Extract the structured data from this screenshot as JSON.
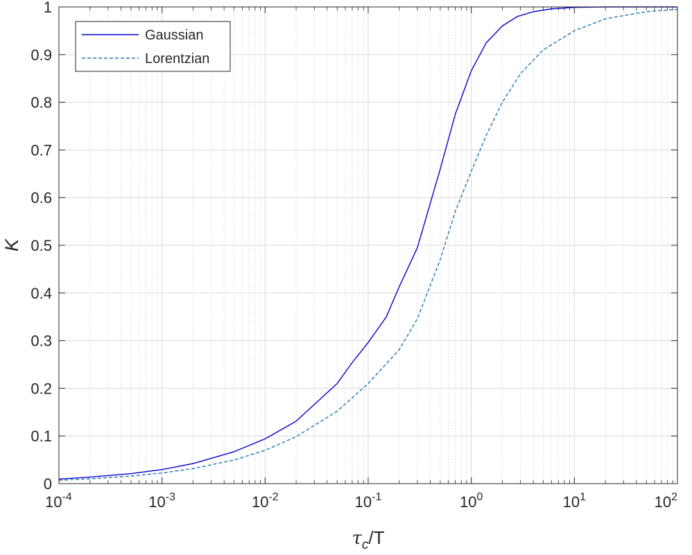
{
  "chart_data": {
    "type": "line",
    "x_scale": "log",
    "xlim": [
      0.0001,
      100
    ],
    "ylim": [
      0,
      1
    ],
    "grid": true,
    "minor_grid_x": true,
    "xlabel": {
      "main": "τ",
      "sub": "c",
      "tail": "/T"
    },
    "ylabel": "K",
    "x_ticks": [
      {
        "base": "10",
        "exp": "-4",
        "value": 0.0001
      },
      {
        "base": "10",
        "exp": "-3",
        "value": 0.001
      },
      {
        "base": "10",
        "exp": "-2",
        "value": 0.01
      },
      {
        "base": "10",
        "exp": "-1",
        "value": 0.1
      },
      {
        "base": "10",
        "exp": "0",
        "value": 1
      },
      {
        "base": "10",
        "exp": "1",
        "value": 10
      },
      {
        "base": "10",
        "exp": "2",
        "value": 100
      }
    ],
    "y_ticks": [
      {
        "label": "0",
        "value": 0
      },
      {
        "label": "0.1",
        "value": 0.1
      },
      {
        "label": "0.2",
        "value": 0.2
      },
      {
        "label": "0.3",
        "value": 0.3
      },
      {
        "label": "0.4",
        "value": 0.4
      },
      {
        "label": "0.5",
        "value": 0.5
      },
      {
        "label": "0.6",
        "value": 0.6
      },
      {
        "label": "0.7",
        "value": 0.7
      },
      {
        "label": "0.8",
        "value": 0.8
      },
      {
        "label": "0.9",
        "value": 0.9
      },
      {
        "label": "1",
        "value": 1
      }
    ],
    "legend_position": "top-left",
    "series": [
      {
        "name": "Gaussian",
        "color": "#0000cc",
        "dash": "solid",
        "x": [
          0.0001,
          0.0002,
          0.0005,
          0.001,
          0.002,
          0.005,
          0.01,
          0.02,
          0.05,
          0.07,
          0.1,
          0.15,
          0.2,
          0.3,
          0.5,
          0.7,
          1,
          1.4,
          2,
          2.8,
          4,
          6,
          10,
          20,
          50,
          100
        ],
        "y": [
          0.0095,
          0.0137,
          0.021,
          0.0295,
          0.0421,
          0.067,
          0.094,
          0.131,
          0.21,
          0.254,
          0.296,
          0.35,
          0.413,
          0.495,
          0.66,
          0.775,
          0.866,
          0.925,
          0.96,
          0.98,
          0.99,
          0.996,
          0.999,
          1.0,
          1.0,
          1.0
        ]
      },
      {
        "name": "Lorentzian",
        "color": "#1f77b4",
        "dash": "dashed",
        "x": [
          0.0001,
          0.0002,
          0.0005,
          0.001,
          0.002,
          0.005,
          0.01,
          0.02,
          0.05,
          0.1,
          0.2,
          0.3,
          0.5,
          0.7,
          1,
          1.4,
          2,
          3,
          5,
          10,
          20,
          50,
          100
        ],
        "y": [
          0.0071,
          0.01,
          0.0158,
          0.0223,
          0.0315,
          0.0495,
          0.07,
          0.0985,
          0.152,
          0.21,
          0.281,
          0.346,
          0.47,
          0.571,
          0.655,
          0.731,
          0.8,
          0.86,
          0.91,
          0.95,
          0.975,
          0.99,
          0.995
        ]
      }
    ]
  }
}
